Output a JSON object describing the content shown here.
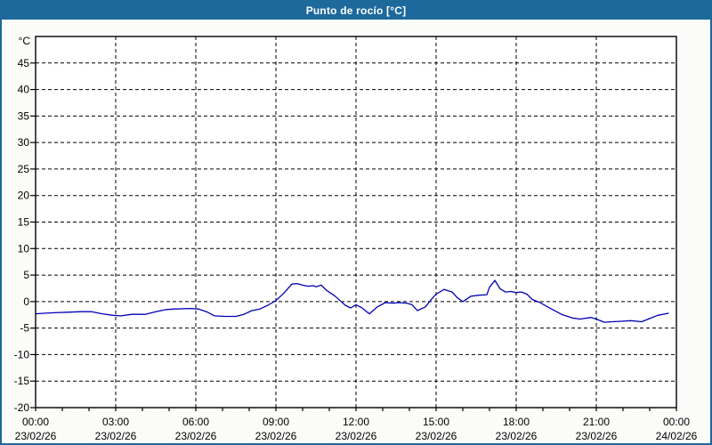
{
  "window": {
    "title": "Punto de rocío [°C]"
  },
  "colors": {
    "titlebar_bg": "#1d699c",
    "titlebar_text": "#ffffff",
    "window_border": "#1d699c",
    "content_bg": "#fbfcf9",
    "plot_bg": "#ffffff",
    "grid": "#000000",
    "frame": "#000000",
    "axis_text": "#000000",
    "series_line": "#0000b4"
  },
  "chart_data": {
    "type": "line",
    "title": "Punto de rocío [°C]",
    "legend": "none",
    "grid": "dashed",
    "y_axis": {
      "unit": "°C",
      "min": -20,
      "max": 50,
      "tick_step": 5,
      "label_min": -20,
      "label_max": 45,
      "grid_min": -15,
      "grid_max": 45
    },
    "x_axis": {
      "min_hours": 0,
      "max_hours": 24,
      "grid_step_hours": 3,
      "minor_tick_hours": 1,
      "labels": [
        {
          "hours": 0,
          "time": "00:00",
          "date": "23/02/26"
        },
        {
          "hours": 3,
          "time": "03:00",
          "date": "23/02/26"
        },
        {
          "hours": 6,
          "time": "06:00",
          "date": "23/02/26"
        },
        {
          "hours": 9,
          "time": "09:00",
          "date": "23/02/26"
        },
        {
          "hours": 12,
          "time": "12:00",
          "date": "23/02/26"
        },
        {
          "hours": 15,
          "time": "15:00",
          "date": "23/02/26"
        },
        {
          "hours": 18,
          "time": "18:00",
          "date": "23/02/26"
        },
        {
          "hours": 21,
          "time": "21:00",
          "date": "23/02/26"
        },
        {
          "hours": 24,
          "time": "00:00",
          "date": "24/02/26"
        }
      ]
    },
    "series": [
      {
        "name": "Punto de rocío",
        "color": "#0000b4",
        "points": [
          [
            0.0,
            -2.3
          ],
          [
            0.3,
            -2.2
          ],
          [
            0.7,
            -2.1
          ],
          [
            1.2,
            -2.0
          ],
          [
            1.7,
            -1.9
          ],
          [
            2.1,
            -1.9
          ],
          [
            2.5,
            -2.3
          ],
          [
            2.9,
            -2.6
          ],
          [
            3.2,
            -2.7
          ],
          [
            3.6,
            -2.4
          ],
          [
            4.1,
            -2.4
          ],
          [
            4.5,
            -1.9
          ],
          [
            4.9,
            -1.5
          ],
          [
            5.2,
            -1.4
          ],
          [
            5.8,
            -1.3
          ],
          [
            6.1,
            -1.4
          ],
          [
            6.4,
            -1.9
          ],
          [
            6.7,
            -2.7
          ],
          [
            7.1,
            -2.8
          ],
          [
            7.5,
            -2.8
          ],
          [
            7.8,
            -2.4
          ],
          [
            8.1,
            -1.7
          ],
          [
            8.4,
            -1.4
          ],
          [
            8.7,
            -0.7
          ],
          [
            9.0,
            0.2
          ],
          [
            9.3,
            1.6
          ],
          [
            9.6,
            3.3
          ],
          [
            9.8,
            3.4
          ],
          [
            10.0,
            3.1
          ],
          [
            10.2,
            2.9
          ],
          [
            10.4,
            3.0
          ],
          [
            10.5,
            2.8
          ],
          [
            10.7,
            3.1
          ],
          [
            10.9,
            2.1
          ],
          [
            11.2,
            1.1
          ],
          [
            11.4,
            0.2
          ],
          [
            11.6,
            -0.7
          ],
          [
            11.8,
            -1.2
          ],
          [
            12.0,
            -0.6
          ],
          [
            12.2,
            -1.1
          ],
          [
            12.5,
            -2.3
          ],
          [
            12.8,
            -1.0
          ],
          [
            13.1,
            -0.2
          ],
          [
            13.4,
            -0.3
          ],
          [
            13.6,
            -0.2
          ],
          [
            13.9,
            -0.3
          ],
          [
            14.1,
            -0.6
          ],
          [
            14.3,
            -1.7
          ],
          [
            14.6,
            -1.0
          ],
          [
            14.8,
            0.3
          ],
          [
            15.0,
            1.4
          ],
          [
            15.3,
            2.3
          ],
          [
            15.6,
            1.8
          ],
          [
            15.8,
            0.7
          ],
          [
            16.0,
            0.0
          ],
          [
            16.3,
            1.0
          ],
          [
            16.6,
            1.2
          ],
          [
            16.9,
            1.3
          ],
          [
            17.0,
            2.7
          ],
          [
            17.2,
            4.0
          ],
          [
            17.4,
            2.4
          ],
          [
            17.6,
            1.8
          ],
          [
            17.8,
            1.9
          ],
          [
            18.0,
            1.7
          ],
          [
            18.2,
            1.8
          ],
          [
            18.4,
            1.4
          ],
          [
            18.6,
            0.4
          ],
          [
            18.9,
            -0.2
          ],
          [
            19.1,
            -0.8
          ],
          [
            19.4,
            -1.6
          ],
          [
            19.7,
            -2.4
          ],
          [
            20.1,
            -3.1
          ],
          [
            20.4,
            -3.3
          ],
          [
            20.8,
            -3.0
          ],
          [
            21.0,
            -3.3
          ],
          [
            21.3,
            -3.9
          ],
          [
            21.6,
            -3.8
          ],
          [
            22.0,
            -3.7
          ],
          [
            22.3,
            -3.6
          ],
          [
            22.7,
            -3.8
          ],
          [
            23.0,
            -3.2
          ],
          [
            23.3,
            -2.6
          ],
          [
            23.7,
            -2.2
          ]
        ]
      }
    ]
  }
}
